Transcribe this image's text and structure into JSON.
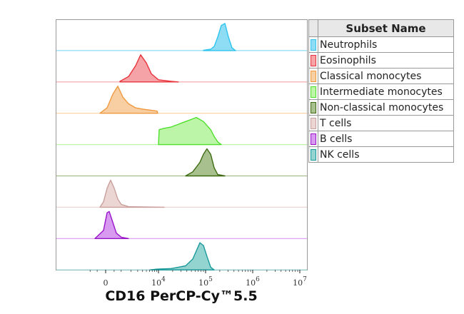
{
  "chart_data": {
    "type": "histogram-overlay-stacked",
    "xlabel": "CD16 PerCP-Cy™5.5",
    "x_scale": "biexponential",
    "xlim": [
      -1000,
      10000000
    ],
    "x_ticks": [
      {
        "value": 0,
        "base": "0",
        "exp": ""
      },
      {
        "value": 10000,
        "base": "10",
        "exp": "4"
      },
      {
        "value": 100000,
        "base": "10",
        "exp": "5"
      },
      {
        "value": 1000000,
        "base": "10",
        "exp": "6"
      },
      {
        "value": 10000000,
        "base": "10",
        "exp": "7"
      }
    ],
    "legend": {
      "title": "Subset Name",
      "placement": "right"
    },
    "series": [
      {
        "name": "Neutrophils",
        "color": "#2ec4ef",
        "fill": "#8fdcf5",
        "points": [
          [
            90100,
            0.01
          ],
          [
            128000,
            0.05
          ],
          [
            152000,
            0.15
          ],
          [
            181000,
            0.5
          ],
          [
            215000,
            0.92
          ],
          [
            257000,
            1.0
          ],
          [
            305000,
            0.5
          ],
          [
            364000,
            0.1
          ],
          [
            433000,
            0
          ]
        ]
      },
      {
        "name": "Eosinophils",
        "color": "#e8343c",
        "fill": "#f5a3a6",
        "points": [
          [
            903,
            0.02
          ],
          [
            1700,
            0.2
          ],
          [
            2650,
            0.6
          ],
          [
            3570,
            1.0
          ],
          [
            4990,
            0.7
          ],
          [
            6660,
            0.3
          ],
          [
            10000,
            0.08
          ],
          [
            18700,
            0.02
          ],
          [
            26500,
            0
          ]
        ]
      },
      {
        "name": "Classical monocytes",
        "color": "#ef9a40",
        "fill": "#f8cfa3",
        "points": [
          [
            -330,
            0
          ],
          [
            81,
            0.2
          ],
          [
            416,
            0.7
          ],
          [
            745,
            1.0
          ],
          [
            1135,
            0.6
          ],
          [
            1700,
            0.35
          ],
          [
            2650,
            0.2
          ],
          [
            4060,
            0.15
          ],
          [
            7530,
            0.1
          ],
          [
            9250,
            0.08
          ],
          [
            9600,
            0
          ]
        ]
      },
      {
        "name": "Intermediate monocytes",
        "color": "#4fe02c",
        "fill": "#bdf5a8",
        "points": [
          [
            10000,
            0
          ],
          [
            10350,
            0.55
          ],
          [
            13200,
            0.6
          ],
          [
            18700,
            0.65
          ],
          [
            26500,
            0.75
          ],
          [
            37700,
            0.85
          ],
          [
            53400,
            0.95
          ],
          [
            63600,
            1.0
          ],
          [
            90100,
            0.85
          ],
          [
            128000,
            0.55
          ],
          [
            152000,
            0.3
          ],
          [
            181000,
            0.1
          ],
          [
            215000,
            0
          ]
        ]
      },
      {
        "name": "Non-classical monocytes",
        "color": "#3d6b12",
        "fill": "#a8c08e",
        "points": [
          [
            37700,
            0
          ],
          [
            53400,
            0.15
          ],
          [
            75700,
            0.5
          ],
          [
            90100,
            0.8
          ],
          [
            107000,
            1.0
          ],
          [
            128000,
            0.8
          ],
          [
            152000,
            0.3
          ],
          [
            181000,
            0.05
          ],
          [
            257000,
            0
          ]
        ]
      },
      {
        "name": "T cells",
        "color": "#c9a09c",
        "fill": "#ecd6d4",
        "points": [
          [
            -330,
            0
          ],
          [
            -122,
            0.2
          ],
          [
            81,
            0.7
          ],
          [
            288,
            1.0
          ],
          [
            506,
            0.7
          ],
          [
            745,
            0.3
          ],
          [
            1015,
            0.1
          ],
          [
            1700,
            0.02
          ],
          [
            4060,
            0.01
          ],
          [
            13200,
            0
          ]
        ]
      },
      {
        "name": "B cells",
        "color": "#9a16c9",
        "fill": "#d79af0",
        "points": [
          [
            -647,
            0
          ],
          [
            -122,
            0.3
          ],
          [
            81,
            0.95
          ],
          [
            204,
            1.0
          ],
          [
            416,
            0.6
          ],
          [
            647,
            0.2
          ],
          [
            1015,
            0.05
          ],
          [
            1700,
            0
          ]
        ]
      },
      {
        "name": "NK cells",
        "color": "#1a9a9a",
        "fill": "#93d3d0",
        "points": [
          [
            6140,
            0
          ],
          [
            9250,
            0.03
          ],
          [
            18700,
            0.05
          ],
          [
            37700,
            0.15
          ],
          [
            53400,
            0.4
          ],
          [
            63600,
            0.7
          ],
          [
            75700,
            1.0
          ],
          [
            90100,
            0.9
          ],
          [
            107000,
            0.5
          ],
          [
            128000,
            0.1
          ],
          [
            152000,
            0
          ]
        ]
      }
    ]
  }
}
